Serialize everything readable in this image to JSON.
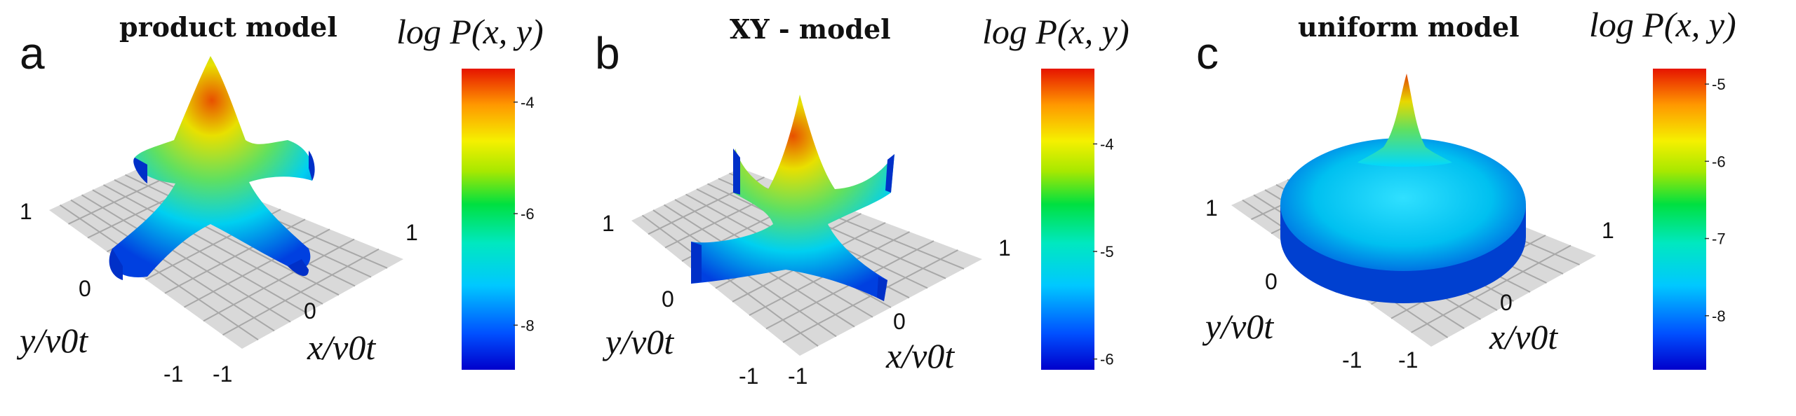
{
  "chart_data": [
    {
      "type": "surface3d",
      "panel": "a",
      "title": "product model",
      "colorbar_label": "log P(x, y)",
      "colorbar_range": [
        -8.8,
        -3.4
      ],
      "colorbar_ticks": [
        -4,
        -6,
        -8
      ],
      "xlabel": "x/v0t",
      "ylabel": "y/v0t",
      "x_ticks": [
        "-1",
        "0",
        "1"
      ],
      "y_ticks": [
        "-1",
        "0",
        "1"
      ],
      "shape": "four-armed cusp (X shape) along the axes with a sharp central peak"
    },
    {
      "type": "surface3d",
      "panel": "b",
      "title": "XY - model",
      "colorbar_label": "log P(x, y)",
      "colorbar_range": [
        -6.1,
        -3.3
      ],
      "colorbar_ticks": [
        -4,
        -5,
        -6
      ],
      "xlabel": "x/v0t",
      "ylabel": "y/v0t",
      "x_ticks": [
        "-1",
        "0",
        "1"
      ],
      "y_ticks": [
        "-1",
        "1"
      ],
      "shape": "central peak with four thin curved arms toward the corners"
    },
    {
      "type": "surface3d",
      "panel": "c",
      "title": "uniform model",
      "colorbar_label": "log P(x, y)",
      "colorbar_range": [
        -8.7,
        -4.8
      ],
      "colorbar_ticks": [
        -5,
        -6,
        -7,
        -8
      ],
      "xlabel": "x/v0t",
      "ylabel": "y/v0t",
      "x_ticks": [
        "-1",
        "0",
        "1"
      ],
      "y_ticks": [
        "-1",
        "0",
        "1"
      ],
      "shape": "circular disk plateau with a sharp central peak"
    }
  ],
  "colors": {
    "grid_floor": "#d8d8d8",
    "grid_line": "#a6a6a6",
    "colormap": [
      "#0000d8",
      "#0060ff",
      "#00d8ff",
      "#00e070",
      "#8ae600",
      "#f0f000",
      "#ff9000",
      "#e81000"
    ]
  }
}
